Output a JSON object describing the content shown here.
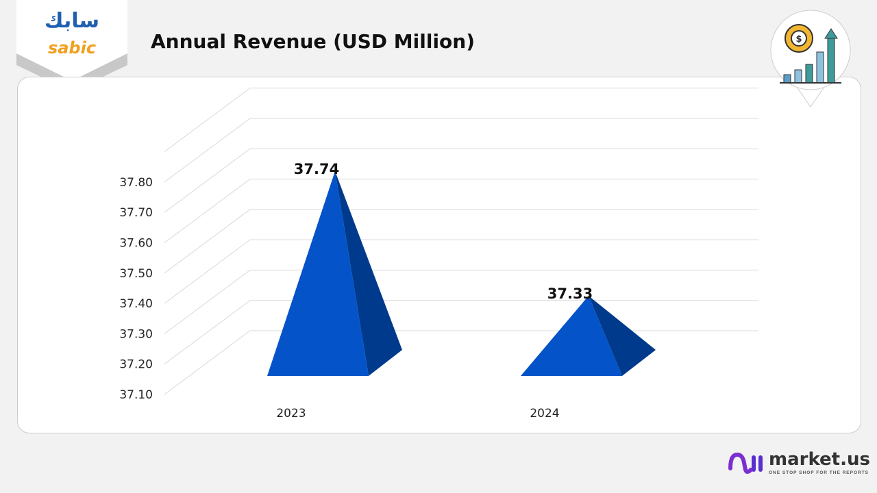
{
  "header": {
    "title": "Annual Revenue (USD Million)",
    "logo_text": "sabic",
    "logo_arabic": "سابك"
  },
  "footer": {
    "brand": "market.us",
    "tagline": "ONE STOP SHOP FOR THE REPORTS"
  },
  "icons": {
    "top_right": "gear-dollar-growth-chart-icon"
  },
  "colors": {
    "pyramid_front": "#0453c8",
    "pyramid_side": "#003a8c",
    "brand_purple": "#7b2fd0"
  },
  "chart_data": {
    "type": "bar",
    "shape": "3d-pyramid",
    "categories": [
      "2023",
      "2024"
    ],
    "values": [
      37.74,
      37.33
    ],
    "data_labels": [
      "37.74",
      "37.33"
    ],
    "yticks": [
      "37.10",
      "37.20",
      "37.30",
      "37.40",
      "37.50",
      "37.60",
      "37.70",
      "37.80"
    ],
    "ylim": [
      37.1,
      37.8
    ],
    "grid": true,
    "title": "Annual Revenue (USD Million)"
  }
}
